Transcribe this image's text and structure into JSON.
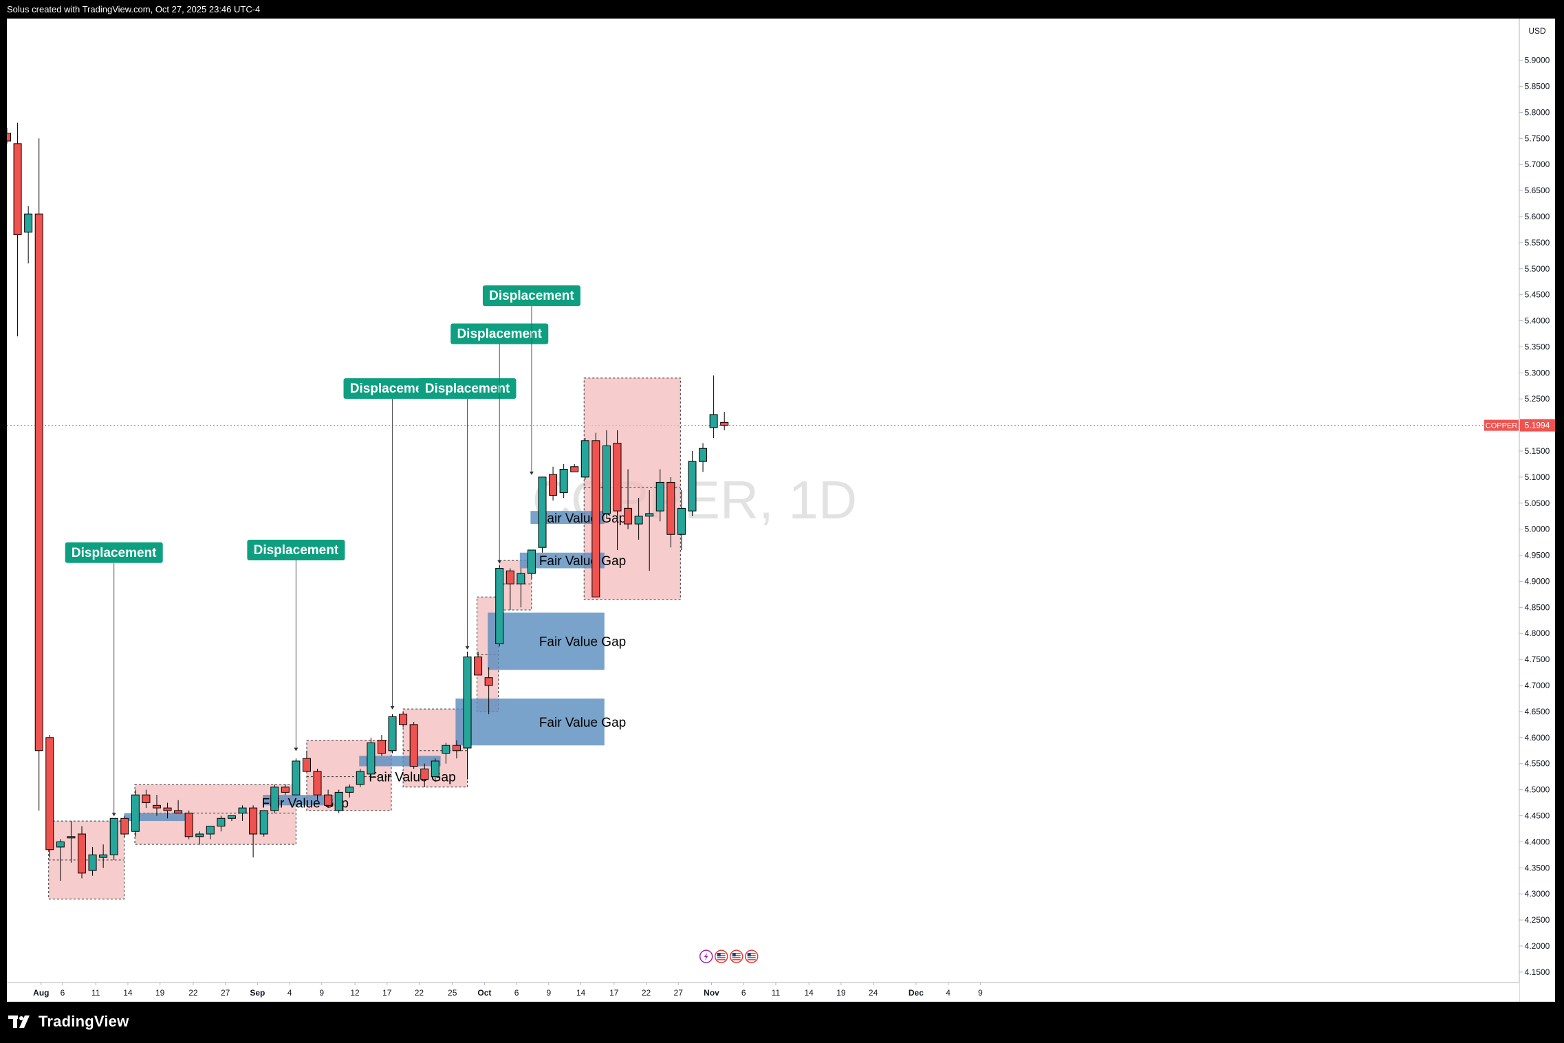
{
  "header": {
    "title": "Solus created with TradingView.com, Oct 27, 2025 23:46 UTC-4"
  },
  "footer": {
    "brand": "TradingView"
  },
  "watermark": "COPPER, 1D",
  "price_axis": {
    "currency": "USD",
    "symbol_tag": "COPPER",
    "last_price": "5.1994"
  },
  "colors": {
    "up": "#26a69a",
    "down": "#ef5350",
    "fvg": "#5b8fbf",
    "zone": "#f2b8b8",
    "displacement": "#0e9f80"
  },
  "chart_data": {
    "type": "candlestick",
    "symbol": "COPPER",
    "interval": "1D",
    "ylim": [
      4.13,
      5.98
    ],
    "last_price": 5.1994,
    "y_ticks": [
      "4.1500",
      "4.2000",
      "4.2500",
      "4.3000",
      "4.3500",
      "4.4000",
      "4.4500",
      "4.5000",
      "4.5500",
      "4.6000",
      "4.6500",
      "4.7000",
      "4.7500",
      "4.8000",
      "4.8500",
      "4.9000",
      "4.9500",
      "5.0000",
      "5.0500",
      "5.1000",
      "5.1500",
      "5.2000",
      "5.2500",
      "5.3000",
      "5.3500",
      "5.4000",
      "5.4500",
      "5.5000",
      "5.5500",
      "5.6000",
      "5.6500",
      "5.7000",
      "5.7500",
      "5.8000",
      "5.8500",
      "5.9000"
    ],
    "x_ticks": [
      {
        "label": "Aug",
        "i": 3.2,
        "bold": true
      },
      {
        "label": "6",
        "i": 5.2
      },
      {
        "label": "11",
        "i": 8.3
      },
      {
        "label": "14",
        "i": 11.3
      },
      {
        "label": "19",
        "i": 14.3
      },
      {
        "label": "22",
        "i": 17.4
      },
      {
        "label": "27",
        "i": 20.4
      },
      {
        "label": "Sep",
        "i": 23.4,
        "bold": true
      },
      {
        "label": "4",
        "i": 26.4
      },
      {
        "label": "9",
        "i": 29.4
      },
      {
        "label": "12",
        "i": 32.5
      },
      {
        "label": "17",
        "i": 35.5
      },
      {
        "label": "22",
        "i": 38.5
      },
      {
        "label": "25",
        "i": 41.6
      },
      {
        "label": "Oct",
        "i": 44.6,
        "bold": true
      },
      {
        "label": "6",
        "i": 47.6
      },
      {
        "label": "9",
        "i": 50.6
      },
      {
        "label": "14",
        "i": 53.6
      },
      {
        "label": "17",
        "i": 56.7
      },
      {
        "label": "22",
        "i": 59.7
      },
      {
        "label": "27",
        "i": 62.7
      },
      {
        "label": "Nov",
        "i": 65.8,
        "bold": true
      },
      {
        "label": "6",
        "i": 68.8
      },
      {
        "label": "11",
        "i": 71.8
      },
      {
        "label": "14",
        "i": 74.9
      },
      {
        "label": "19",
        "i": 77.9
      },
      {
        "label": "24",
        "i": 80.9
      },
      {
        "label": "Dec",
        "i": 84.9,
        "bold": true
      },
      {
        "label": "4",
        "i": 87.9
      },
      {
        "label": "9",
        "i": 90.9
      }
    ],
    "candles": [
      {
        "o": 5.76,
        "h": 5.77,
        "l": 5.74,
        "c": 5.745
      },
      {
        "o": 5.74,
        "h": 5.78,
        "l": 5.37,
        "c": 5.565
      },
      {
        "o": 5.57,
        "h": 5.62,
        "l": 5.51,
        "c": 5.605
      },
      {
        "o": 5.605,
        "h": 5.75,
        "l": 4.46,
        "c": 4.575
      },
      {
        "o": 4.6,
        "h": 4.605,
        "l": 4.37,
        "c": 4.385
      },
      {
        "o": 4.39,
        "h": 4.405,
        "l": 4.325,
        "c": 4.4
      },
      {
        "o": 4.41,
        "h": 4.44,
        "l": 4.36,
        "c": 4.41
      },
      {
        "o": 4.415,
        "h": 4.43,
        "l": 4.33,
        "c": 4.34
      },
      {
        "o": 4.345,
        "h": 4.39,
        "l": 4.335,
        "c": 4.375
      },
      {
        "o": 4.37,
        "h": 4.395,
        "l": 4.35,
        "c": 4.375
      },
      {
        "o": 4.375,
        "h": 4.44,
        "l": 4.365,
        "c": 4.445
      },
      {
        "o": 4.445,
        "h": 4.45,
        "l": 4.41,
        "c": 4.415
      },
      {
        "o": 4.42,
        "h": 4.5,
        "l": 4.41,
        "c": 4.49
      },
      {
        "o": 4.49,
        "h": 4.5,
        "l": 4.465,
        "c": 4.475
      },
      {
        "o": 4.47,
        "h": 4.49,
        "l": 4.45,
        "c": 4.465
      },
      {
        "o": 4.465,
        "h": 4.475,
        "l": 4.445,
        "c": 4.46
      },
      {
        "o": 4.46,
        "h": 4.48,
        "l": 4.455,
        "c": 4.455
      },
      {
        "o": 4.455,
        "h": 4.46,
        "l": 4.405,
        "c": 4.41
      },
      {
        "o": 4.41,
        "h": 4.42,
        "l": 4.395,
        "c": 4.415
      },
      {
        "o": 4.415,
        "h": 4.43,
        "l": 4.405,
        "c": 4.43
      },
      {
        "o": 4.43,
        "h": 4.45,
        "l": 4.42,
        "c": 4.445
      },
      {
        "o": 4.445,
        "h": 4.45,
        "l": 4.44,
        "c": 4.45
      },
      {
        "o": 4.455,
        "h": 4.47,
        "l": 4.44,
        "c": 4.465
      },
      {
        "o": 4.465,
        "h": 4.47,
        "l": 4.37,
        "c": 4.415
      },
      {
        "o": 4.415,
        "h": 4.46,
        "l": 4.41,
        "c": 4.46
      },
      {
        "o": 4.46,
        "h": 4.51,
        "l": 4.455,
        "c": 4.505
      },
      {
        "o": 4.505,
        "h": 4.51,
        "l": 4.49,
        "c": 4.495
      },
      {
        "o": 4.49,
        "h": 4.56,
        "l": 4.49,
        "c": 4.555
      },
      {
        "o": 4.56,
        "h": 4.575,
        "l": 4.535,
        "c": 4.535
      },
      {
        "o": 4.535,
        "h": 4.54,
        "l": 4.48,
        "c": 4.49
      },
      {
        "o": 4.49,
        "h": 4.5,
        "l": 4.465,
        "c": 4.47
      },
      {
        "o": 4.46,
        "h": 4.5,
        "l": 4.455,
        "c": 4.495
      },
      {
        "o": 4.495,
        "h": 4.51,
        "l": 4.485,
        "c": 4.505
      },
      {
        "o": 4.51,
        "h": 4.54,
        "l": 4.505,
        "c": 4.535
      },
      {
        "o": 4.53,
        "h": 4.6,
        "l": 4.525,
        "c": 4.59
      },
      {
        "o": 4.595,
        "h": 4.605,
        "l": 4.565,
        "c": 4.57
      },
      {
        "o": 4.575,
        "h": 4.645,
        "l": 4.57,
        "c": 4.64
      },
      {
        "o": 4.645,
        "h": 4.65,
        "l": 4.62,
        "c": 4.625
      },
      {
        "o": 4.625,
        "h": 4.63,
        "l": 4.54,
        "c": 4.545
      },
      {
        "o": 4.54,
        "h": 4.55,
        "l": 4.505,
        "c": 4.52
      },
      {
        "o": 4.525,
        "h": 4.56,
        "l": 4.515,
        "c": 4.555
      },
      {
        "o": 4.57,
        "h": 4.59,
        "l": 4.55,
        "c": 4.585
      },
      {
        "o": 4.585,
        "h": 4.595,
        "l": 4.56,
        "c": 4.575
      },
      {
        "o": 4.58,
        "h": 4.765,
        "l": 4.52,
        "c": 4.755
      },
      {
        "o": 4.755,
        "h": 4.765,
        "l": 4.72,
        "c": 4.72
      },
      {
        "o": 4.715,
        "h": 4.735,
        "l": 4.645,
        "c": 4.7
      },
      {
        "o": 4.78,
        "h": 4.93,
        "l": 4.775,
        "c": 4.925
      },
      {
        "o": 4.92,
        "h": 4.925,
        "l": 4.845,
        "c": 4.895
      },
      {
        "o": 4.895,
        "h": 4.925,
        "l": 4.85,
        "c": 4.915
      },
      {
        "o": 4.915,
        "h": 4.96,
        "l": 4.905,
        "c": 4.96
      },
      {
        "o": 4.965,
        "h": 5.1,
        "l": 4.955,
        "c": 5.1
      },
      {
        "o": 5.105,
        "h": 5.12,
        "l": 5.055,
        "c": 5.065
      },
      {
        "o": 5.07,
        "h": 5.125,
        "l": 5.06,
        "c": 5.115
      },
      {
        "o": 5.12,
        "h": 5.125,
        "l": 5.11,
        "c": 5.11
      },
      {
        "o": 5.1,
        "h": 5.175,
        "l": 5.095,
        "c": 5.17
      },
      {
        "o": 5.17,
        "h": 5.185,
        "l": 4.87,
        "c": 4.87
      },
      {
        "o": 5.03,
        "h": 5.19,
        "l": 5.02,
        "c": 5.16
      },
      {
        "o": 5.165,
        "h": 5.19,
        "l": 4.96,
        "c": 5.035
      },
      {
        "o": 5.04,
        "h": 5.115,
        "l": 5.0,
        "c": 5.01
      },
      {
        "o": 5.01,
        "h": 5.06,
        "l": 4.98,
        "c": 5.025
      },
      {
        "o": 5.025,
        "h": 5.075,
        "l": 4.92,
        "c": 5.03
      },
      {
        "o": 5.035,
        "h": 5.115,
        "l": 5.015,
        "c": 5.09
      },
      {
        "o": 5.09,
        "h": 5.1,
        "l": 4.965,
        "c": 4.99
      },
      {
        "o": 4.99,
        "h": 5.075,
        "l": 4.96,
        "c": 5.04
      },
      {
        "o": 5.035,
        "h": 5.15,
        "l": 5.025,
        "c": 5.13
      },
      {
        "o": 5.13,
        "h": 5.165,
        "l": 5.11,
        "c": 5.155
      },
      {
        "o": 5.195,
        "h": 5.295,
        "l": 5.175,
        "c": 5.22
      },
      {
        "o": 5.205,
        "h": 5.225,
        "l": 5.19,
        "c": 5.1994
      }
    ],
    "zones": [
      {
        "i0": 3.9,
        "i1": 10.95,
        "top": 4.44,
        "bot": 4.29,
        "mid": 4.365
      },
      {
        "i0": 11.95,
        "i1": 27.0,
        "top": 4.51,
        "bot": 4.395,
        "mid": 4.455
      },
      {
        "i0": 28.0,
        "i1": 35.9,
        "top": 4.595,
        "bot": 4.46,
        "mid": 4.525
      },
      {
        "i0": 37.0,
        "i1": 43.0,
        "top": 4.655,
        "bot": 4.505,
        "mid": 4.575
      },
      {
        "i0": 43.9,
        "i1": 45.9,
        "top": 4.87,
        "bot": 4.65,
        "mid": 4.76
      },
      {
        "i0": 46.0,
        "i1": 49.0,
        "top": 4.94,
        "bot": 4.845,
        "mid": 4.895
      },
      {
        "i0": 53.9,
        "i1": 62.9,
        "top": 5.29,
        "bot": 4.865,
        "mid": 5.08
      }
    ],
    "fvgs": [
      {
        "i0": 10.95,
        "i1": 17.0,
        "top": 4.455,
        "bot": 4.44
      },
      {
        "i0": 23.9,
        "i1": 30.5,
        "top": 4.49,
        "bot": 4.47,
        "label": "Fair Value Gap",
        "li": 23.8,
        "ly": 4.475
      },
      {
        "i0": 32.9,
        "i1": 40.5,
        "top": 4.565,
        "bot": 4.545,
        "label": "Fair Value Gap",
        "li": 33.8,
        "ly": 4.525
      },
      {
        "i0": 41.9,
        "i1": 55.8,
        "top": 4.675,
        "bot": 4.585,
        "label": "Fair Value Gap",
        "li": 49.7,
        "ly": 4.63
      },
      {
        "i0": 44.9,
        "i1": 55.8,
        "top": 4.84,
        "bot": 4.73,
        "label": "Fair Value Gap",
        "li": 49.7,
        "ly": 4.785
      },
      {
        "i0": 47.9,
        "i1": 55.8,
        "top": 4.955,
        "bot": 4.925,
        "label": "Fair Value Gap",
        "li": 49.7,
        "ly": 4.94
      },
      {
        "i0": 48.9,
        "i1": 55.8,
        "top": 5.035,
        "bot": 5.01,
        "label": "Fair Value Gap",
        "li": 49.7,
        "ly": 5.022
      }
    ],
    "displacements": [
      {
        "label": "Displacement",
        "i": 10,
        "box_y": 4.955,
        "target": 4.445
      },
      {
        "label": "Displacement",
        "i": 27,
        "box_y": 4.96,
        "target": 4.57
      },
      {
        "label": "Displacement",
        "i": 36,
        "box_y": 5.27,
        "target": 4.65
      },
      {
        "label": "Displacement",
        "i": 43,
        "box_y": 5.27,
        "target": 4.765
      },
      {
        "label": "Displacement",
        "i": 46,
        "box_y": 5.375,
        "target": 4.93
      },
      {
        "label": "Displacement",
        "i": 49,
        "box_y": 5.448,
        "target": 5.1
      }
    ],
    "events": {
      "i0": 65.3,
      "count": 4,
      "y": 4.18
    }
  }
}
